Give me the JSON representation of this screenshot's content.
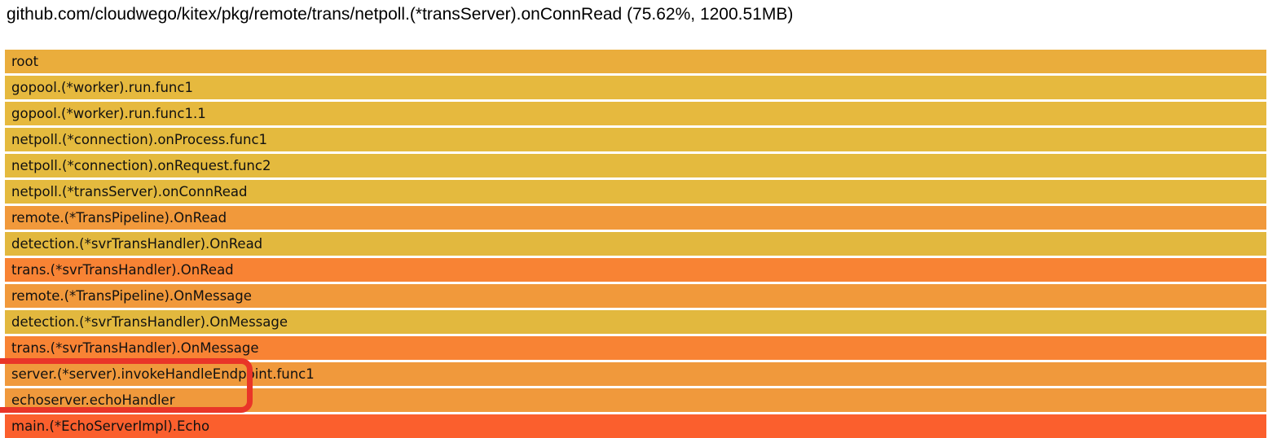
{
  "chart_data": {
    "type": "flamegraph",
    "title": "github.com/cloudwego/kitex/pkg/remote/trans/netpoll.(*transServer).onConnRead (75.62%, 1200.51MB)",
    "selected_frame": {
      "name": "github.com/cloudwego/kitex/pkg/remote/trans/netpoll.(*transServer).onConnRead",
      "percent": 75.62,
      "value": "1200.51MB"
    },
    "orientation": "top-down",
    "frames": [
      {
        "label": "root",
        "width_pct": 100,
        "color": "#eaad3c"
      },
      {
        "label": "gopool.(*worker).run.func1",
        "width_pct": 100,
        "color": "#e6b93e"
      },
      {
        "label": "gopool.(*worker).run.func1.1",
        "width_pct": 100,
        "color": "#e6b93e"
      },
      {
        "label": "netpoll.(*connection).onProcess.func1",
        "width_pct": 100,
        "color": "#e4ba3e"
      },
      {
        "label": "netpoll.(*connection).onRequest.func2",
        "width_pct": 100,
        "color": "#e4ba3e"
      },
      {
        "label": "netpoll.(*transServer).onConnRead",
        "width_pct": 100,
        "color": "#e4ba3e"
      },
      {
        "label": "remote.(*TransPipeline).OnRead",
        "width_pct": 100,
        "color": "#f1993b"
      },
      {
        "label": "detection.(*svrTransHandler).OnRead",
        "width_pct": 100,
        "color": "#e2b83e"
      },
      {
        "label": "trans.(*svrTransHandler).OnRead",
        "width_pct": 100,
        "color": "#f88334"
      },
      {
        "label": "remote.(*TransPipeline).OnMessage",
        "width_pct": 100,
        "color": "#f1993b"
      },
      {
        "label": "detection.(*svrTransHandler).OnMessage",
        "width_pct": 100,
        "color": "#e2b83e"
      },
      {
        "label": "trans.(*svrTransHandler).OnMessage",
        "width_pct": 100,
        "color": "#f88334"
      },
      {
        "label": "server.(*server).invokeHandleEndpoint.func1",
        "width_pct": 100,
        "color": "#f0993c"
      },
      {
        "label": "echoserver.echoHandler",
        "width_pct": 100,
        "color": "#f0993c"
      },
      {
        "label": "main.(*EchoServerImpl).Echo",
        "width_pct": 100,
        "color": "#fb5f2d"
      }
    ],
    "annotation": {
      "type": "highlight-box",
      "color": "#e93528",
      "highlighted_frames": [
        "server.(*server).invokeHandleEndpoint.func1",
        "echoserver.echoHandler"
      ]
    }
  }
}
